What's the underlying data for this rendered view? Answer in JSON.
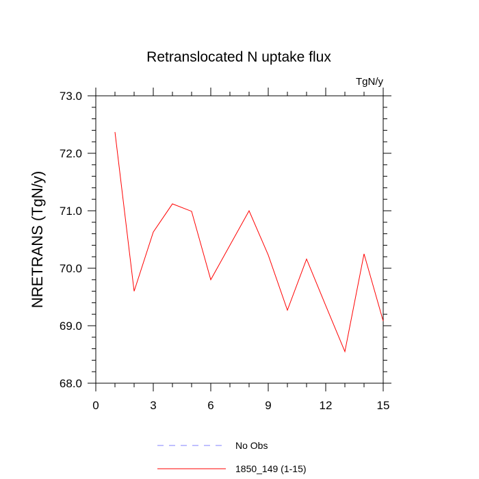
{
  "chart_data": {
    "type": "line",
    "title": "Retranslocated N uptake flux",
    "units_label": "TgN/y",
    "xlabel": "",
    "ylabel": "NRETRANS  (TgN/y)",
    "xlim": [
      0,
      15
    ],
    "ylim": [
      68.0,
      73.0
    ],
    "x_ticks": [
      0,
      3,
      6,
      9,
      12,
      15
    ],
    "x_tick_labels": [
      "0",
      "3",
      "6",
      "9",
      "12",
      "15"
    ],
    "y_ticks": [
      68.0,
      69.0,
      70.0,
      71.0,
      72.0,
      73.0
    ],
    "y_tick_labels": [
      "68.0",
      "69.0",
      "70.0",
      "71.0",
      "72.0",
      "73.0"
    ],
    "grid": false,
    "legend_position": "bottom",
    "series": [
      {
        "name": "1850_149 (1-15)",
        "color": "#ff0000",
        "x": [
          1,
          2,
          3,
          4,
          5,
          6,
          7,
          8,
          9,
          10,
          11,
          12,
          13,
          14,
          15
        ],
        "y": [
          72.37,
          69.6,
          70.63,
          71.12,
          70.99,
          69.8,
          70.4,
          71.0,
          70.23,
          69.27,
          70.16,
          69.35,
          68.55,
          70.25,
          69.08
        ]
      }
    ],
    "legend": [
      {
        "label": "No Obs",
        "color": "#8080ff",
        "style": "dashed"
      },
      {
        "label": "1850_149 (1-15)",
        "color": "#ff0000",
        "style": "solid"
      }
    ]
  }
}
